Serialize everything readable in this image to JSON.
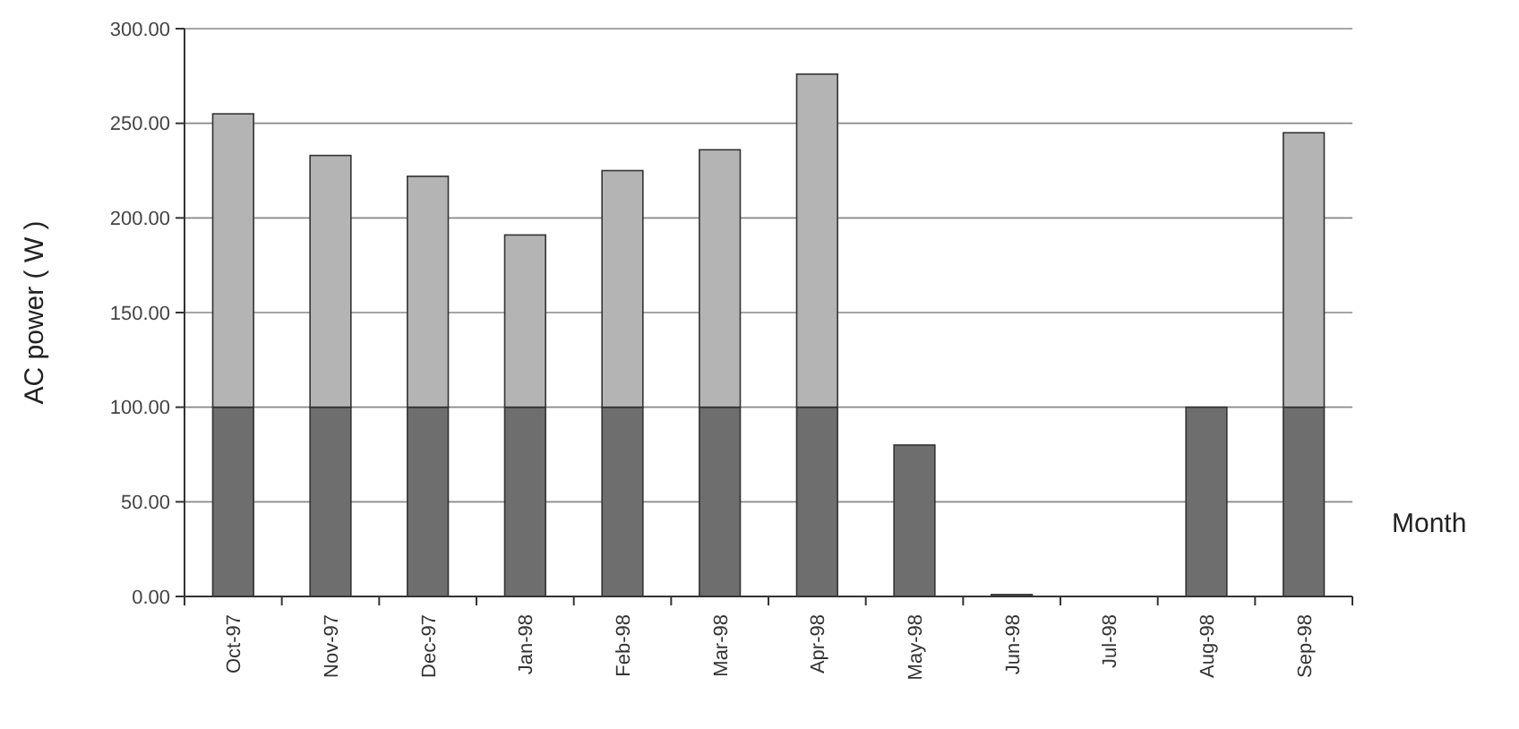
{
  "chart_data": {
    "type": "bar",
    "stacked": true,
    "xlabel": "Month",
    "ylabel": "AC power ( W )",
    "categories": [
      "Oct-97",
      "Nov-97",
      "Dec-97",
      "Jan-98",
      "Feb-98",
      "Mar-98",
      "Apr-98",
      "May-98",
      "Jun-98",
      "Jul-98",
      "Aug-98",
      "Sep-98"
    ],
    "series": [
      {
        "color": "#6e6e6e",
        "values": [
          100,
          100,
          100,
          100,
          100,
          100,
          100,
          80,
          1,
          0,
          100,
          100
        ]
      },
      {
        "color": "#b4b4b4",
        "values": [
          155,
          133,
          122,
          91,
          125,
          136,
          176,
          0,
          0,
          0,
          0,
          145
        ]
      }
    ],
    "ylim": [
      0,
      300
    ],
    "yticks": [
      {
        "value": 0,
        "label": "0.00"
      },
      {
        "value": 50,
        "label": "50.00"
      },
      {
        "value": 100,
        "label": "100.00"
      },
      {
        "value": 150,
        "label": "150.00"
      },
      {
        "value": 200,
        "label": "200.00"
      },
      {
        "value": 250,
        "label": "250.00"
      },
      {
        "value": 300,
        "label": "300.00"
      }
    ],
    "grid": "y"
  }
}
